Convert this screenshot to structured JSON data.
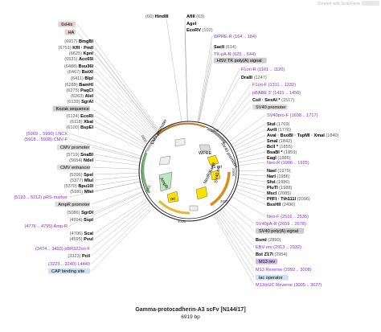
{
  "brand": "Created with SnapGene",
  "title": "Gamma-protocadherin-A3 scFv [N144/17]",
  "length": "6919 bp",
  "map_labels": {
    "wpre": "WPRE",
    "f1ori": "f1 ori",
    "ampr": "AmpR",
    "ori": "ori",
    "neo": "NeoR/KanR",
    "sv40ori": "SV40 ori",
    "sv40promoter": "SV40 promoter",
    "cmvpromoter": "CMV promoter",
    "t1000": "1000",
    "t2000": "2000",
    "t3000": "3000",
    "t4000": "4000",
    "t5000": "5000",
    "t6000": "6000"
  },
  "labels_top": [
    {
      "coord": "(60)",
      "name": "HindIII",
      "kind": "enzyme"
    },
    {
      "coord": "(63)",
      "name": "AflII",
      "kind": "enzyme"
    },
    {
      "coord": "",
      "name": "AgeI",
      "kind": "enzyme"
    },
    {
      "coord": "(102)",
      "name": "EcoRV",
      "kind": "enzyme"
    }
  ],
  "labels_left": [
    {
      "text": "6xHis",
      "kind": "feature"
    },
    {
      "text": "HA",
      "kind": "feature"
    },
    {
      "coord": "(6917)",
      "name": "BmgBI",
      "kind": "enzyme"
    },
    {
      "coord": "(6751)",
      "name": "KflI · PmII",
      "kind": "enzyme"
    },
    {
      "coord": "(6625)",
      "name": "KpnI",
      "kind": "enzyme"
    },
    {
      "coord": "(6531)",
      "name": "Acc65I",
      "kind": "enzyme"
    },
    {
      "coord": "(6488)",
      "name": "Bsu36I",
      "kind": "enzyme"
    },
    {
      "coord": "(6467)",
      "name": "BstXI",
      "kind": "enzyme"
    },
    {
      "coord": "(6411)",
      "name": "BlpI",
      "kind": "enzyme"
    },
    {
      "coord": "(6285)",
      "name": "BamHI",
      "kind": "enzyme"
    },
    {
      "coord": "(6275)",
      "name": "PaqCI",
      "kind": "enzyme"
    },
    {
      "coord": "(6263)",
      "name": "AleI",
      "kind": "enzyme"
    },
    {
      "coord": "(6139)",
      "name": "SgrAI",
      "kind": "enzyme"
    },
    {
      "text": "Kozak sequence",
      "kind": "feature"
    },
    {
      "coord": "(6124)",
      "name": "EcoRI",
      "kind": "enzyme"
    },
    {
      "coord": "(6118)",
      "name": "XbaI",
      "kind": "enzyme"
    },
    {
      "coord": "(6100)",
      "name": "BspEI",
      "kind": "enzyme"
    },
    {
      "coord": "(5969 .. 5990)",
      "name": "LNCX",
      "kind": "primer"
    },
    {
      "coord": "(5918 .. 5938)",
      "name": "CMV-F",
      "kind": "primer"
    },
    {
      "text": "CMV promoter",
      "kind": "feature"
    },
    {
      "coord": "(5719)",
      "name": "SnaBI",
      "kind": "enzyme"
    },
    {
      "coord": "(5654)",
      "name": "NdeI",
      "kind": "enzyme"
    },
    {
      "text": "CMV enhancer",
      "kind": "feature"
    },
    {
      "coord": "(5396)",
      "name": "SpeI",
      "kind": "enzyme"
    },
    {
      "coord": "(5377)",
      "name": "MluI",
      "kind": "enzyme"
    },
    {
      "coord": "(5370)",
      "name": "Bpu10I",
      "kind": "enzyme"
    },
    {
      "coord": "(5181)",
      "name": "MfeI",
      "kind": "enzyme"
    },
    {
      "coord": "(5193 .. 5212)",
      "name": "pRS-marker",
      "kind": "primer"
    },
    {
      "text": "AmpR promoter",
      "kind": "feature"
    },
    {
      "coord": "(5086)",
      "name": "SgrDI",
      "kind": "enzyme"
    },
    {
      "coord": "(4994)",
      "name": "SspI",
      "kind": "enzyme"
    },
    {
      "coord": "(4776 .. 4795)",
      "name": "Amp-R",
      "kind": "primer"
    },
    {
      "coord": "(4706)",
      "name": "ScaI",
      "kind": "enzyme"
    },
    {
      "coord": "(4595)",
      "name": "PvuI",
      "kind": "enzyme"
    },
    {
      "coord": "(3474 .. 3493)",
      "name": "pBR322ori-F",
      "kind": "primer"
    },
    {
      "coord": "(3323)",
      "name": "PciI",
      "kind": "enzyme"
    },
    {
      "coord": "(3223 .. 3240)",
      "name": "L4440",
      "kind": "primer"
    },
    {
      "text": "CAP binding site",
      "kind": "feature"
    }
  ],
  "labels_right": [
    {
      "name": "WPRE-R",
      "coord": "(164 .. 184)",
      "kind": "primer"
    },
    {
      "name": "SacII",
      "coord": "(614)",
      "kind": "enzyme"
    },
    {
      "name": "TK-pA-R",
      "coord": "(625 .. 644)",
      "kind": "primer"
    },
    {
      "text": "HSV TK poly(A) signal",
      "kind": "feature"
    },
    {
      "name": "F1ori-R",
      "coord": "(1101 .. 1120)",
      "kind": "primer"
    },
    {
      "name": "DraIII",
      "coord": "(1247)",
      "kind": "enzyme"
    },
    {
      "name": "F1ori-F",
      "coord": "(1311 .. 1332)",
      "kind": "primer"
    },
    {
      "name": "pBABE 3'",
      "coord": "(1431 .. 1450)",
      "kind": "primer"
    },
    {
      "name": "CsiI · SexAI *",
      "coord": "(1517)",
      "kind": "enzyme"
    },
    {
      "text": "SV40 promoter",
      "kind": "feature"
    },
    {
      "name": "SV40pro-F",
      "coord": "(1698 .. 1717)",
      "kind": "primer"
    },
    {
      "name": "StuI",
      "coord": "(1769)",
      "kind": "enzyme"
    },
    {
      "name": "AvrII",
      "coord": "(1776)",
      "kind": "enzyme"
    },
    {
      "name": "AvaI · BsoBI · TspMI · XmaI",
      "coord": "(1840)",
      "kind": "enzyme"
    },
    {
      "name": "SmaI",
      "coord": "(1842)",
      "kind": "enzyme"
    },
    {
      "name": "BclI *",
      "coord": "(1855)",
      "kind": "enzyme"
    },
    {
      "name": "BsaBI *",
      "coord": "(1859)",
      "kind": "enzyme"
    },
    {
      "name": "EagI",
      "coord": "(1886)",
      "kind": "enzyme"
    },
    {
      "name": "Neo-R",
      "coord": "(1906 .. 1925)",
      "kind": "primer"
    },
    {
      "name": "NaeI",
      "coord": "(1979)",
      "kind": "enzyme"
    },
    {
      "name": "NarI",
      "coord": "(1986)",
      "kind": "enzyme"
    },
    {
      "name": "SfoI",
      "coord": "(1986)",
      "kind": "enzyme"
    },
    {
      "name": "PluTI",
      "coord": "(1988)",
      "kind": "enzyme"
    },
    {
      "name": "MscI",
      "coord": "(2085)",
      "kind": "enzyme"
    },
    {
      "name": "PflFI · Tth111I",
      "coord": "(2096)",
      "kind": "enzyme"
    },
    {
      "name": "BssHII",
      "coord": "(2496)",
      "kind": "enzyme"
    },
    {
      "name": "Neo-F",
      "coord": "(2516 .. 2535)",
      "kind": "primer"
    },
    {
      "name": "SV40pA-R",
      "coord": "(2659 .. 2678)",
      "kind": "primer"
    },
    {
      "text": "SV40 poly(A) signal",
      "kind": "feature"
    },
    {
      "name": "BsmI",
      "coord": "(2890)",
      "kind": "enzyme"
    },
    {
      "name": "EBV-rev",
      "coord": "(2913 .. 2932)",
      "kind": "primer"
    },
    {
      "name": "Bst Z17I",
      "coord": "(2954)",
      "kind": "enzyme"
    },
    {
      "text": "M13 rev",
      "kind": "feature"
    },
    {
      "name": "M13 Reverse",
      "coord": "(2992 .. 3008)",
      "kind": "primer"
    },
    {
      "text": "lac operator",
      "kind": "feature"
    },
    {
      "name": "M13/pUC Reverse",
      "coord": "(3005 .. 3027)",
      "kind": "primer"
    }
  ]
}
